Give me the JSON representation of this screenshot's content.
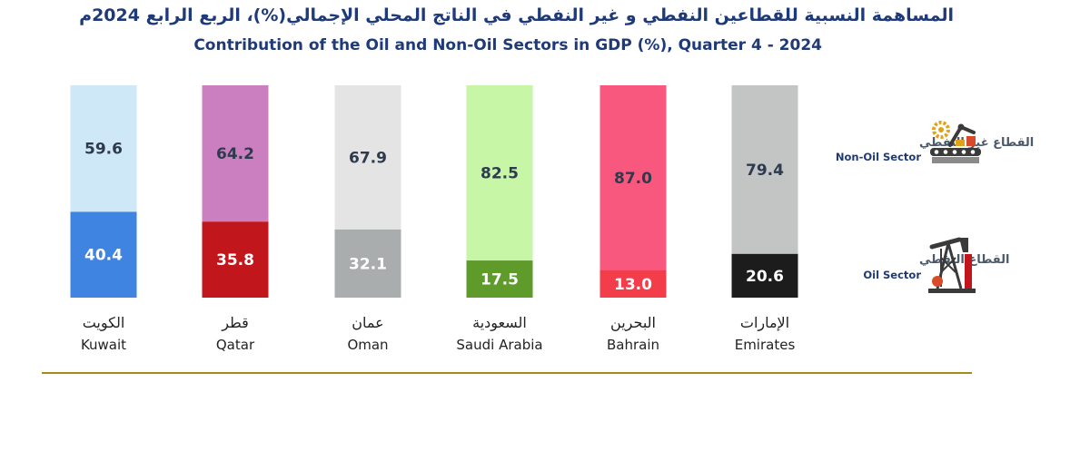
{
  "chart_data": {
    "type": "bar",
    "stacked": true,
    "title": "المساهمة النسبية للقطاعين النفطي و غير النفطي في الناتج المحلي  الإجمالي(%)، الربع الرابع 2024م",
    "subtitle": "Contribution of the Oil and Non-Oil Sectors in GDP (%), Quarter 4 - 2024",
    "categories": [
      {
        "ar": "الكويت",
        "en": "Kuwait"
      },
      {
        "ar": "قطر",
        "en": "Qatar"
      },
      {
        "ar": "عمان",
        "en": "Oman"
      },
      {
        "ar": "السعودية",
        "en": "Saudi Arabia"
      },
      {
        "ar": "البحرين",
        "en": "Bahrain"
      },
      {
        "ar": "الإمارات",
        "en": "Emirates"
      }
    ],
    "series": [
      {
        "name": "Oil Sector",
        "name_ar": "القطاع النفطي",
        "values": [
          40.4,
          35.8,
          32.1,
          17.5,
          13.0,
          20.6
        ],
        "labels": [
          "40.4",
          "35.8",
          "32.1",
          "17.5",
          "13.0",
          "20.6"
        ],
        "colors": [
          "#3f84e0",
          "#c0161c",
          "#a9adae",
          "#5e9b2a",
          "#f43d4a",
          "#1c1c1c"
        ],
        "label_colors": [
          "#ffffff",
          "#ffffff",
          "#ffffff",
          "#ffffff",
          "#ffffff",
          "#ffffff"
        ]
      },
      {
        "name": "Non-Oil Sector",
        "name_ar": "القطاع غير النفطي",
        "values": [
          59.6,
          64.2,
          67.9,
          82.5,
          87.0,
          79.4
        ],
        "labels": [
          "59.6",
          "64.2",
          "67.9",
          "82.5",
          "87.0",
          "79.4"
        ],
        "colors": [
          "#cfe8f8",
          "#cc7fc0",
          "#e3e4e3",
          "#c6f6a6",
          "#f8587e",
          "#c3c5c5"
        ],
        "label_colors": [
          "#2e3b4e",
          "#2e3b4e",
          "#2e3b4e",
          "#2e3b4e",
          "#2e3b4e",
          "#2e3b4e"
        ]
      }
    ],
    "ylim": [
      0,
      100
    ],
    "legend_position": "right",
    "grid": false
  },
  "icons": {
    "non_oil": "factory-robot-arm-icon",
    "oil": "oil-pump-jack-icon"
  }
}
